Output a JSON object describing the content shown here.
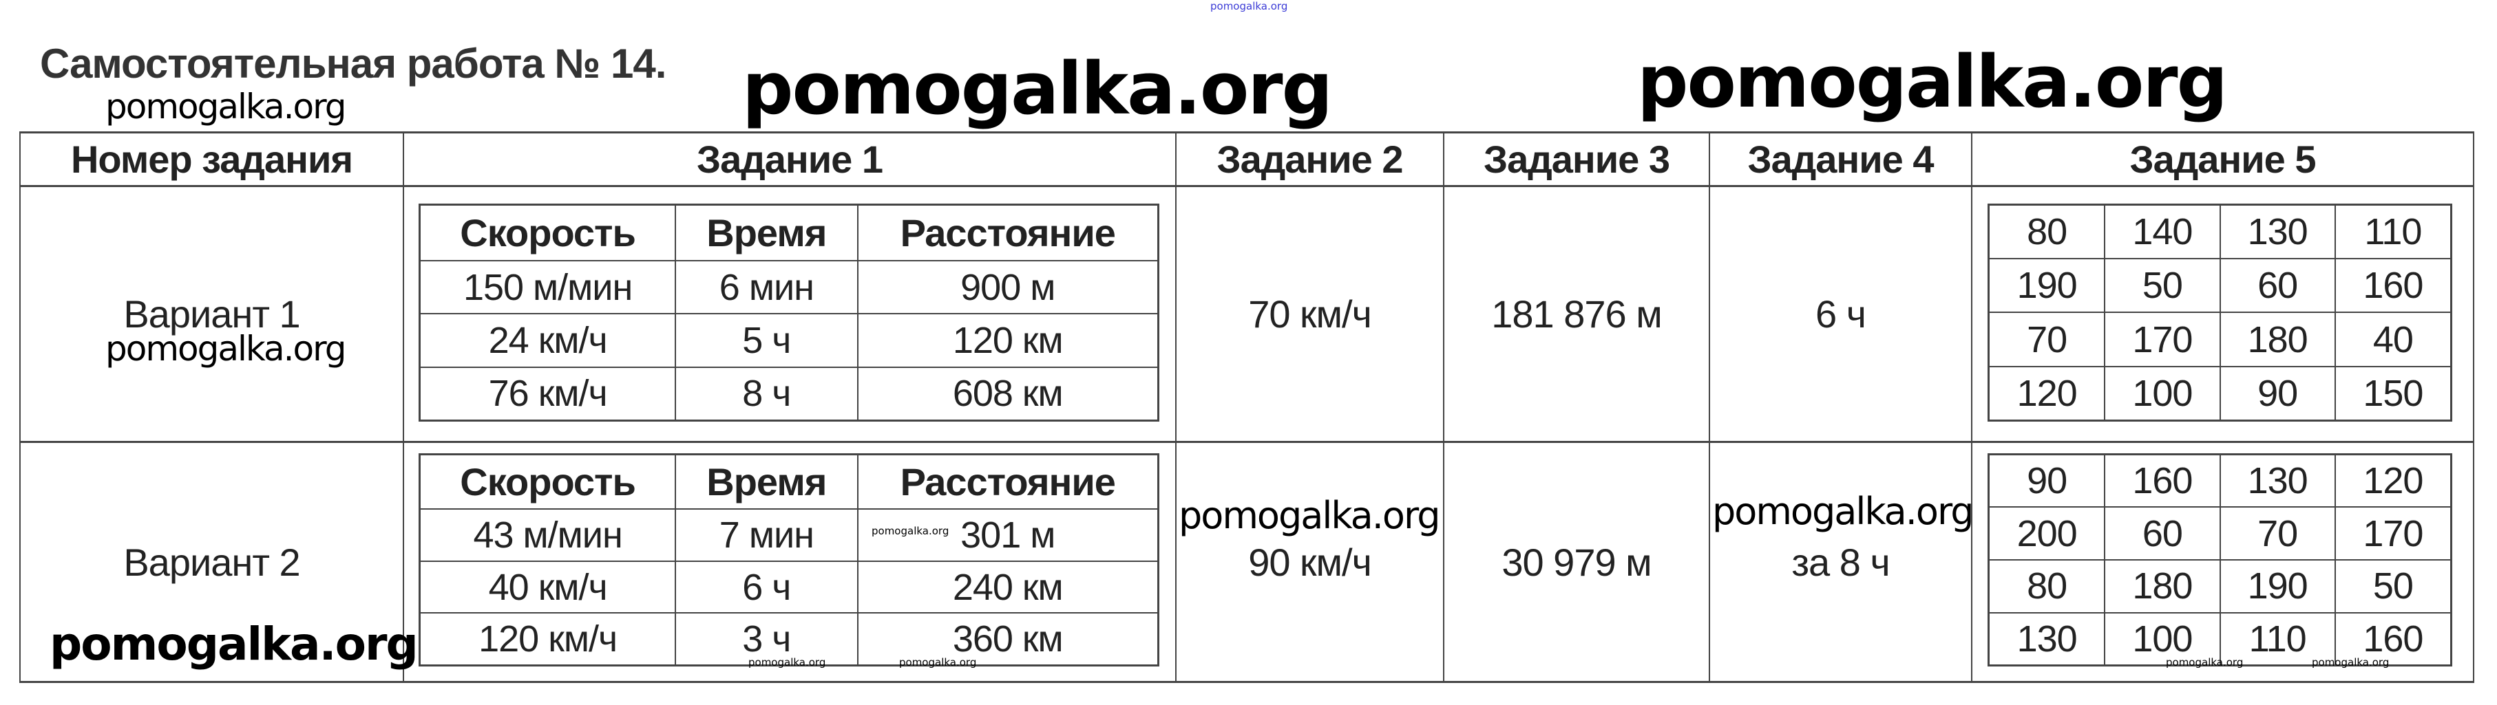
{
  "title": "Самостоятельная работа № 14.",
  "watermark": "pomogalka.org",
  "header": [
    "Номер задания",
    "Задание 1",
    "Задание 2",
    "Задание 3",
    "Задание 4",
    "Задание 5"
  ],
  "task1_columns": [
    "Скорость",
    "Время",
    "Расстояние"
  ],
  "variants": [
    {
      "label": "Вариант 1",
      "task1_rows": [
        [
          "150 м/мин",
          "6 мин",
          "900 м"
        ],
        [
          "24 км/ч",
          "5 ч",
          "120 км"
        ],
        [
          "76 км/ч",
          "8 ч",
          "608 км"
        ]
      ],
      "task2": "70 км/ч",
      "task3": "181 876 м",
      "task4": "6 ч",
      "task5": [
        [
          "80",
          "140",
          "130",
          "110"
        ],
        [
          "190",
          "50",
          "60",
          "160"
        ],
        [
          "70",
          "170",
          "180",
          "40"
        ],
        [
          "120",
          "100",
          "90",
          "150"
        ]
      ]
    },
    {
      "label": "Вариант 2",
      "task1_rows": [
        [
          "43 м/мин",
          "7 мин",
          "301 м"
        ],
        [
          "40 км/ч",
          "6 ч",
          "240 км"
        ],
        [
          "120 км/ч",
          "3 ч",
          "360 км"
        ]
      ],
      "task2": "90 км/ч",
      "task3": "30 979 м",
      "task4": "за 8 ч",
      "task5": [
        [
          "90",
          "160",
          "130",
          "120"
        ],
        [
          "200",
          "60",
          "70",
          "170"
        ],
        [
          "80",
          "180",
          "190",
          "50"
        ],
        [
          "130",
          "100",
          "110",
          "160"
        ]
      ]
    }
  ]
}
